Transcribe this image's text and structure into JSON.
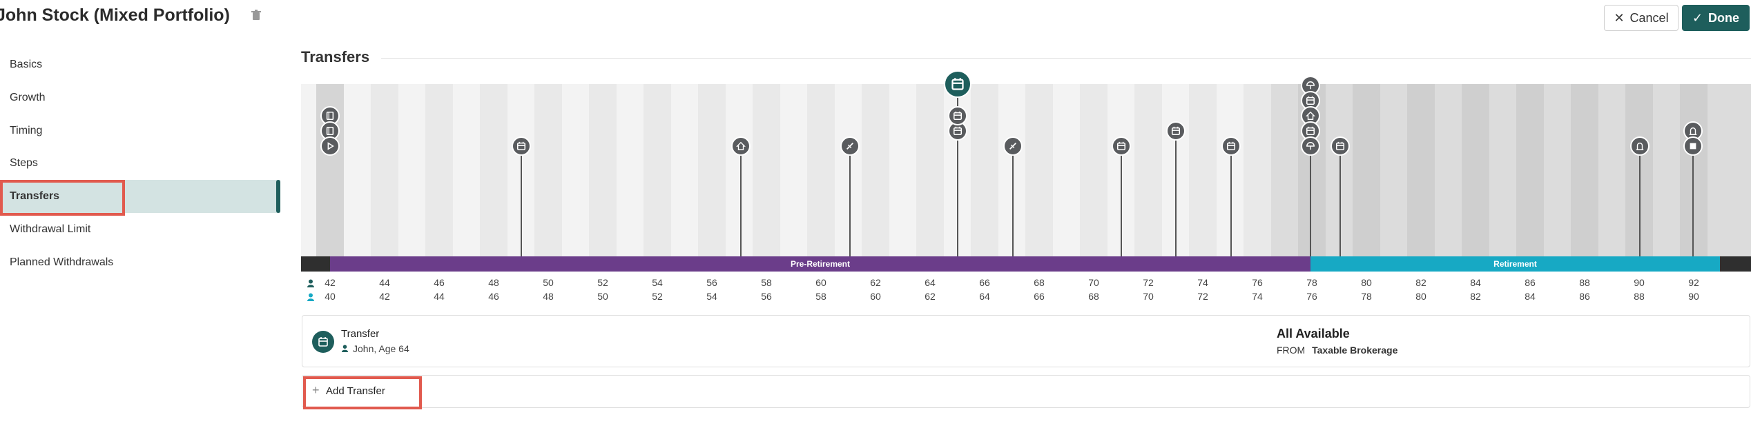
{
  "header": {
    "title": "John Stock (Mixed Portfolio)",
    "cancel_label": "Cancel",
    "done_label": "Done"
  },
  "sidebar": {
    "items": [
      {
        "label": "Basics",
        "active": false
      },
      {
        "label": "Growth",
        "active": false
      },
      {
        "label": "Timing",
        "active": false
      },
      {
        "label": "Steps",
        "active": false
      },
      {
        "label": "Transfers",
        "active": true
      },
      {
        "label": "Withdrawal Limit",
        "active": false
      },
      {
        "label": "Planned Withdrawals",
        "active": false
      }
    ]
  },
  "main": {
    "section_title": "Transfers",
    "timeline": {
      "phases": [
        {
          "label": "Pre-Retirement",
          "color": "#6b3d8a"
        },
        {
          "label": "Retirement",
          "color": "#17a9c4"
        }
      ],
      "john_ages": [
        42,
        44,
        46,
        48,
        50,
        52,
        54,
        56,
        58,
        60,
        62,
        64,
        66,
        68,
        70,
        72,
        74,
        76,
        78,
        80,
        82,
        84,
        86,
        88,
        90,
        92
      ],
      "spouse_ages": [
        40,
        42,
        44,
        46,
        48,
        50,
        52,
        54,
        56,
        58,
        60,
        62,
        64,
        66,
        68,
        70,
        72,
        74,
        76,
        78,
        80,
        82,
        84,
        86,
        88,
        90
      ],
      "colors": {
        "person1": "#1e5e5c",
        "person2": "#17a9c4",
        "event": "#595b5e",
        "selected_event": "#1e5e5c"
      }
    },
    "transfer": {
      "title": "Transfer",
      "subtitle": "John, Age 64",
      "amount": "All Available",
      "from_label": "FROM",
      "from_account": "Taxable Brokerage"
    },
    "add_transfer_label": "Add Transfer"
  }
}
